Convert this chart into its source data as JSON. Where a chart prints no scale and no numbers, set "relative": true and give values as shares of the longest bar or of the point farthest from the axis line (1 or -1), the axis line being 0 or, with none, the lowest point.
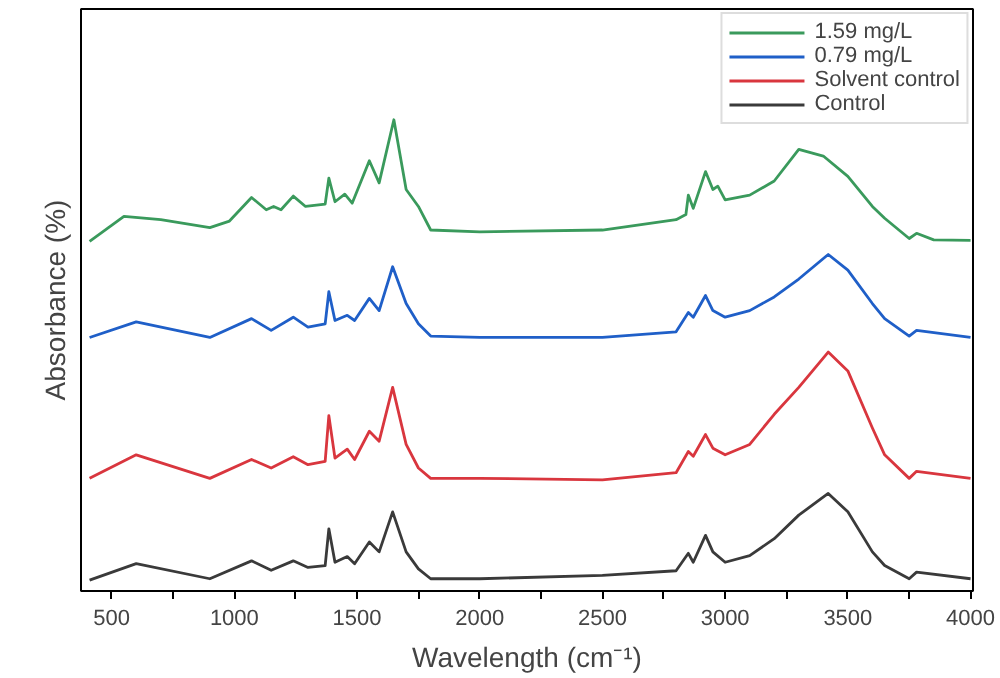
{
  "chart_data": {
    "type": "line",
    "relative": true,
    "xlabel": "Wavelength (cm⁻¹)",
    "ylabel": "Absorbance (%)",
    "xlim": [
      375,
      4010
    ],
    "xticks": [
      500,
      {
        "value": 750,
        "label": null
      },
      1000,
      {
        "value": 1250,
        "label": null
      },
      1500,
      {
        "value": 1750,
        "label": null
      },
      2000,
      {
        "value": 2250,
        "label": null
      },
      2500,
      {
        "value": 2750,
        "label": null
      },
      3000,
      {
        "value": 3250,
        "label": null
      },
      3500,
      {
        "value": 3750,
        "label": null
      },
      4000
    ],
    "grid": false,
    "legend": "top right",
    "marker": "none",
    "line_style": "solid",
    "x": [
      410,
      600,
      900,
      1070,
      1150,
      1240,
      1300,
      1370,
      1385,
      1410,
      1460,
      1490,
      1550,
      1590,
      1645,
      1700,
      1750,
      1800,
      2000,
      2500,
      2800,
      2850,
      2870,
      2920,
      2950,
      3000,
      3100,
      3200,
      3300,
      3420,
      3500,
      3600,
      3650,
      3750,
      3780,
      4000
    ],
    "series": [
      {
        "name": "1.59 mg/L",
        "color": "#3a9a5c",
        "x": [
          410,
          550,
          700,
          900,
          980,
          1070,
          1130,
          1160,
          1190,
          1240,
          1290,
          1370,
          1385,
          1410,
          1450,
          1480,
          1550,
          1590,
          1650,
          1700,
          1750,
          1800,
          2000,
          2500,
          2800,
          2840,
          2850,
          2870,
          2920,
          2950,
          2970,
          3000,
          3100,
          3200,
          3300,
          3400,
          3500,
          3600,
          3650,
          3750,
          3780,
          3850,
          4000
        ],
        "values": [
          0.742,
          0.795,
          0.788,
          0.771,
          0.785,
          0.835,
          0.809,
          0.816,
          0.809,
          0.838,
          0.816,
          0.821,
          0.876,
          0.826,
          0.842,
          0.823,
          0.913,
          0.866,
          1.0,
          0.852,
          0.816,
          0.766,
          0.762,
          0.766,
          0.788,
          0.799,
          0.84,
          0.812,
          0.89,
          0.852,
          0.859,
          0.83,
          0.84,
          0.87,
          0.937,
          0.923,
          0.88,
          0.816,
          0.791,
          0.748,
          0.759,
          0.745,
          0.744
        ]
      },
      {
        "name": "0.79 mg/L",
        "color": "#1f5fc8",
        "values": [
          0.538,
          0.571,
          0.538,
          0.578,
          0.553,
          0.581,
          0.56,
          0.567,
          0.635,
          0.574,
          0.585,
          0.574,
          0.621,
          0.595,
          0.688,
          0.61,
          0.567,
          0.541,
          0.538,
          0.538,
          0.55,
          0.591,
          0.581,
          0.627,
          0.595,
          0.581,
          0.595,
          0.624,
          0.662,
          0.714,
          0.681,
          0.61,
          0.578,
          0.541,
          0.553,
          0.538
        ]
      },
      {
        "name": "Solvent control",
        "color": "#d9363e",
        "values": [
          0.239,
          0.289,
          0.239,
          0.279,
          0.261,
          0.285,
          0.268,
          0.275,
          0.372,
          0.282,
          0.301,
          0.279,
          0.339,
          0.318,
          0.432,
          0.311,
          0.261,
          0.239,
          0.239,
          0.236,
          0.251,
          0.296,
          0.286,
          0.332,
          0.303,
          0.289,
          0.311,
          0.375,
          0.432,
          0.507,
          0.467,
          0.346,
          0.289,
          0.239,
          0.254,
          0.239
        ]
      },
      {
        "name": "Control",
        "color": "#3a3a3a",
        "values": [
          0.023,
          0.058,
          0.026,
          0.064,
          0.044,
          0.064,
          0.05,
          0.054,
          0.132,
          0.061,
          0.073,
          0.058,
          0.104,
          0.083,
          0.168,
          0.083,
          0.047,
          0.026,
          0.026,
          0.033,
          0.043,
          0.08,
          0.061,
          0.118,
          0.083,
          0.061,
          0.075,
          0.111,
          0.161,
          0.207,
          0.168,
          0.083,
          0.054,
          0.026,
          0.04,
          0.026
        ]
      }
    ]
  }
}
